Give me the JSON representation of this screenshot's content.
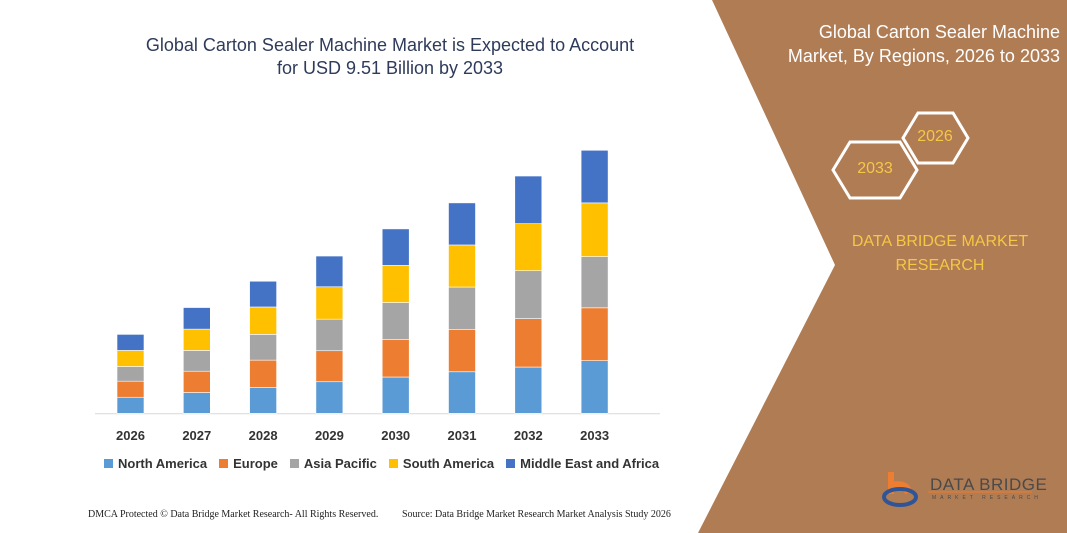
{
  "header": {
    "title_line1": "Global Carton Sealer Machine Market is Expected to Account",
    "title_line2": "for USD 9.51 Billion by 2033"
  },
  "side_panel": {
    "title_line1": "Global Carton Sealer Machine",
    "title_line2": "Market, By Regions, 2026 to 2033",
    "hex_2026": "2026",
    "hex_2033": "2033",
    "brand_line1": "DATA BRIDGE MARKET",
    "brand_line2": "RESEARCH",
    "logo_text": "DATA BRIDGE",
    "logo_sub": "MARKET RESEARCH",
    "panel_color": "#b07c54",
    "accent_color": "#f6c744"
  },
  "footer": {
    "copyright": "DMCA Protected © Data Bridge Market Research- All Rights Reserved.",
    "source": "Source: Data Bridge Market Research Market Analysis Study 2026"
  },
  "chart_data": {
    "type": "bar",
    "stacked": true,
    "title": "Global Carton Sealer Machine Market is Expected to Account for USD 9.51 Billion by 2033",
    "xlabel": "",
    "ylabel": "",
    "y_axis_shown": false,
    "grid": false,
    "legend_position": "bottom",
    "categories": [
      "2026",
      "2027",
      "2028",
      "2029",
      "2030",
      "2031",
      "2032",
      "2033"
    ],
    "ylim": [
      0,
      9.51
    ],
    "series": [
      {
        "name": "North America",
        "color": "#5b9bd5",
        "values": [
          0.58,
          0.75,
          0.93,
          1.14,
          1.31,
          1.5,
          1.67,
          1.9
        ]
      },
      {
        "name": "Europe",
        "color": "#ed7d31",
        "values": [
          0.58,
          0.77,
          0.99,
          1.12,
          1.35,
          1.52,
          1.75,
          1.91
        ]
      },
      {
        "name": "Asia Pacific",
        "color": "#a5a5a5",
        "values": [
          0.53,
          0.75,
          0.93,
          1.14,
          1.34,
          1.54,
          1.73,
          1.85
        ]
      },
      {
        "name": "South America",
        "color": "#ffc000",
        "values": [
          0.58,
          0.77,
          0.99,
          1.17,
          1.34,
          1.52,
          1.7,
          1.94
        ]
      },
      {
        "name": "Middle East and Africa",
        "color": "#4472c4",
        "values": [
          0.58,
          0.78,
          0.93,
          1.11,
          1.32,
          1.52,
          1.72,
          1.9
        ]
      }
    ]
  }
}
